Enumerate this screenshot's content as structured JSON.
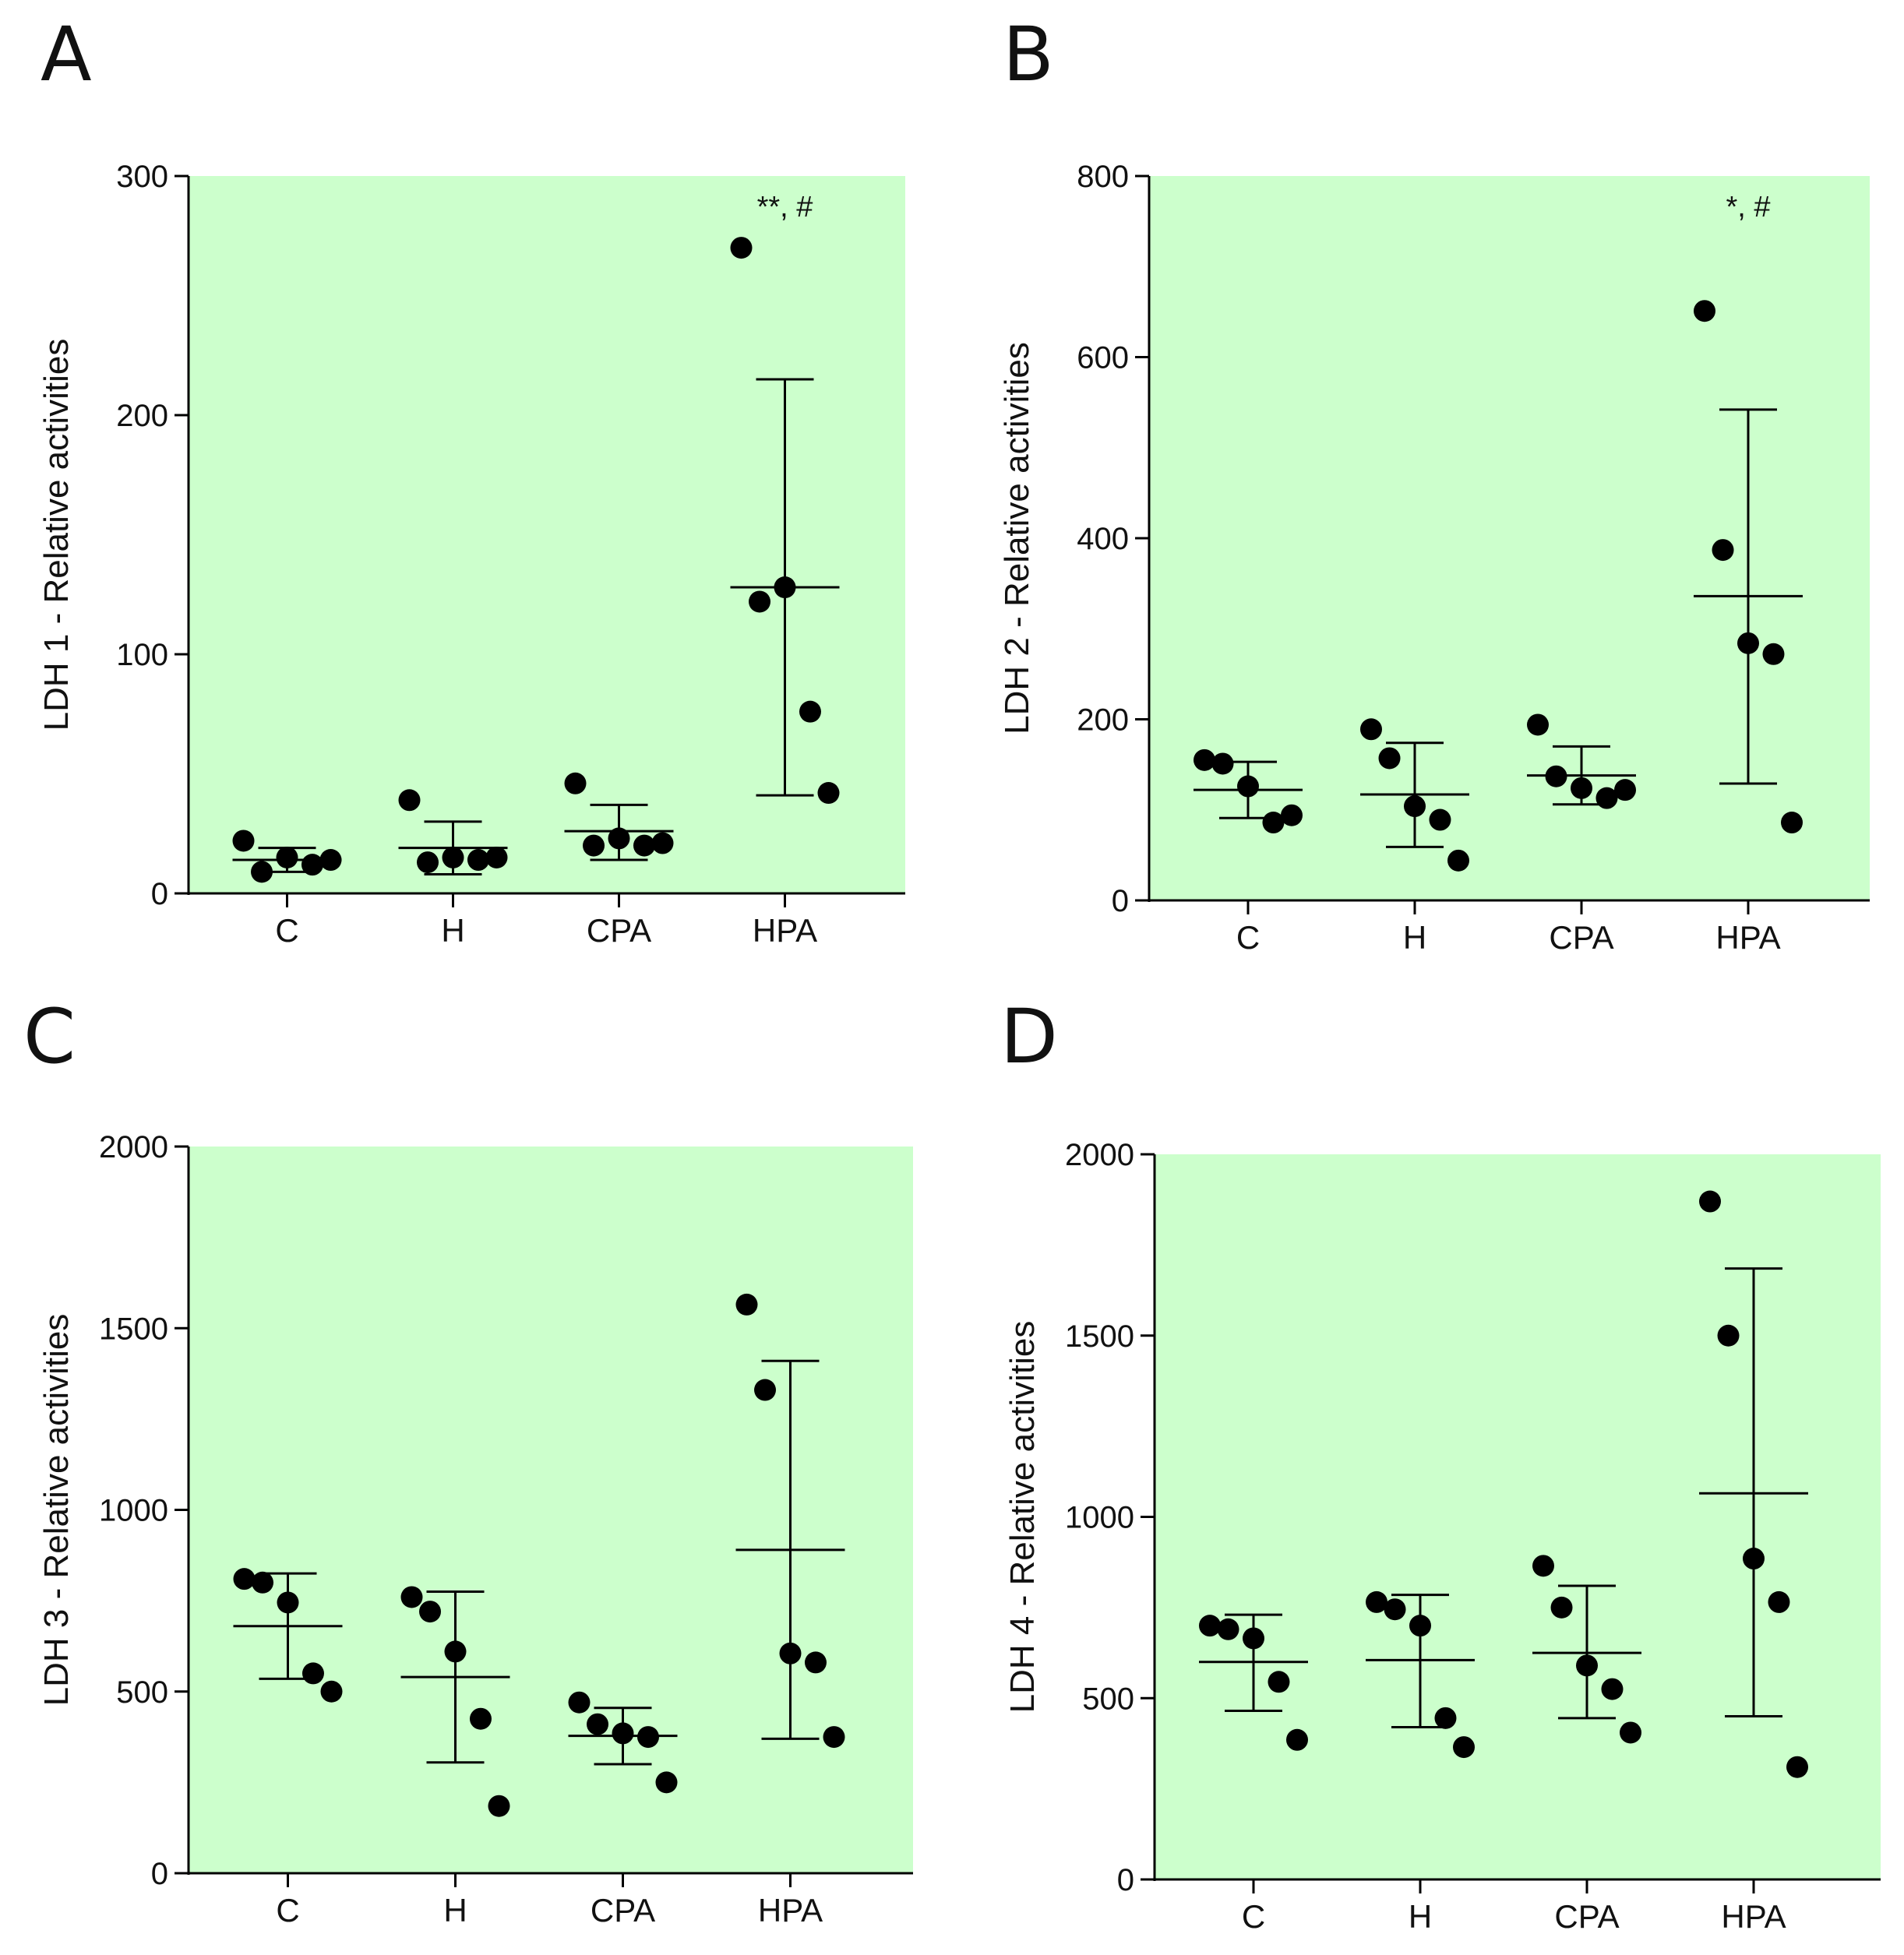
{
  "colors": {
    "plot_bg": "#ccffcc",
    "marker": "#000000",
    "axis": "#000000"
  },
  "chart_data": [
    {
      "panel": "A",
      "type": "scatter",
      "ylabel": "LDH 1 - Relative activities",
      "ylim": [
        0,
        300
      ],
      "yticks": [
        0,
        100,
        200,
        300
      ],
      "categories": [
        "C",
        "H",
        "CPA",
        "HPA"
      ],
      "groups": [
        {
          "category": "C",
          "points": [
            22,
            9,
            15,
            12,
            14
          ],
          "mean": 14,
          "sd_low": 9,
          "sd_high": 19
        },
        {
          "category": "H",
          "points": [
            39,
            13,
            15,
            14,
            15
          ],
          "mean": 19,
          "sd_low": 8,
          "sd_high": 30
        },
        {
          "category": "CPA",
          "points": [
            46,
            20,
            23,
            20,
            21
          ],
          "mean": 26,
          "sd_low": 14,
          "sd_high": 37
        },
        {
          "category": "HPA",
          "points": [
            270,
            122,
            128,
            76,
            42
          ],
          "mean": 128,
          "sd_low": 41,
          "sd_high": 215
        }
      ],
      "annotations": [
        {
          "category": "HPA",
          "text": "**, #"
        }
      ],
      "grid": false
    },
    {
      "panel": "B",
      "type": "scatter",
      "ylabel": "LDH 2 - Relative activities",
      "ylim": [
        0,
        800
      ],
      "yticks": [
        0,
        200,
        400,
        600,
        800
      ],
      "categories": [
        "C",
        "H",
        "CPA",
        "HPA"
      ],
      "groups": [
        {
          "category": "C",
          "points": [
            155,
            151,
            126,
            86,
            94
          ],
          "mean": 122,
          "sd_low": 91,
          "sd_high": 153
        },
        {
          "category": "H",
          "points": [
            189,
            157,
            104,
            89,
            44
          ],
          "mean": 117,
          "sd_low": 59,
          "sd_high": 174
        },
        {
          "category": "CPA",
          "points": [
            194,
            137,
            124,
            113,
            122
          ],
          "mean": 138,
          "sd_low": 106,
          "sd_high": 170
        },
        {
          "category": "HPA",
          "points": [
            651,
            387,
            284,
            272,
            86
          ],
          "mean": 336,
          "sd_low": 129,
          "sd_high": 542
        }
      ],
      "annotations": [
        {
          "category": "HPA",
          "text": "*, #"
        }
      ],
      "grid": false
    },
    {
      "panel": "C",
      "type": "scatter",
      "ylabel": "LDH 3 - Relative activities",
      "ylim": [
        0,
        2000
      ],
      "yticks": [
        0,
        500,
        1000,
        1500,
        2000
      ],
      "categories": [
        "C",
        "H",
        "CPA",
        "HPA"
      ],
      "groups": [
        {
          "category": "C",
          "points": [
            810,
            800,
            745,
            550,
            500
          ],
          "mean": 680,
          "sd_low": 535,
          "sd_high": 825
        },
        {
          "category": "H",
          "points": [
            760,
            720,
            610,
            425,
            185
          ],
          "mean": 540,
          "sd_low": 305,
          "sd_high": 775
        },
        {
          "category": "CPA",
          "points": [
            470,
            410,
            385,
            375,
            250
          ],
          "mean": 378,
          "sd_low": 300,
          "sd_high": 455
        },
        {
          "category": "HPA",
          "points": [
            1565,
            1330,
            605,
            580,
            375
          ],
          "mean": 890,
          "sd_low": 370,
          "sd_high": 1410
        }
      ],
      "grid": false
    },
    {
      "panel": "D",
      "type": "scatter",
      "ylabel": "LDH 4 - Relative activities",
      "ylim": [
        0,
        2000
      ],
      "yticks": [
        0,
        500,
        1000,
        1500,
        2000
      ],
      "categories": [
        "C",
        "H",
        "CPA",
        "HPA"
      ],
      "groups": [
        {
          "category": "C",
          "points": [
            700,
            690,
            665,
            545,
            385
          ],
          "mean": 600,
          "sd_low": 465,
          "sd_high": 730
        },
        {
          "category": "H",
          "points": [
            765,
            745,
            700,
            445,
            365
          ],
          "mean": 605,
          "sd_low": 420,
          "sd_high": 785
        },
        {
          "category": "CPA",
          "points": [
            865,
            750,
            590,
            525,
            405
          ],
          "mean": 625,
          "sd_low": 445,
          "sd_high": 810
        },
        {
          "category": "HPA",
          "points": [
            1870,
            1500,
            885,
            765,
            310
          ],
          "mean": 1065,
          "sd_low": 450,
          "sd_high": 1685
        }
      ],
      "grid": false
    }
  ]
}
